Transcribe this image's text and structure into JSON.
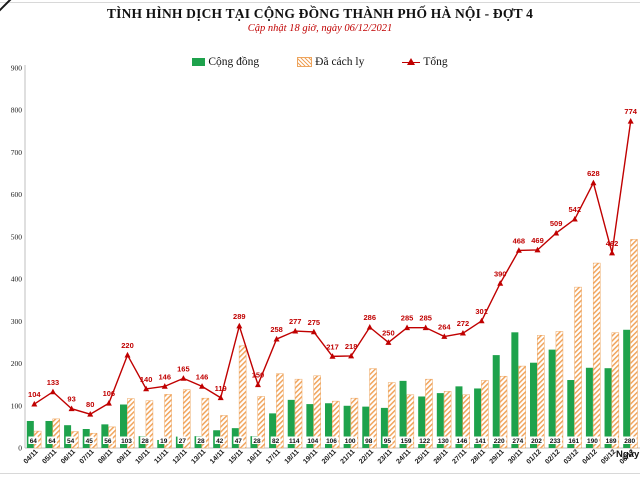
{
  "header": {
    "title": "TÌNH HÌNH DỊCH TẠI CỘNG ĐỒNG THÀNH PHỐ HÀ NỘI - ĐỢT 4",
    "subtitle": "Cập nhật 18 giờ, ngày 06/12/2021"
  },
  "legend": [
    {
      "label": "Cộng đồng",
      "swatch": "green-solid-square",
      "color": "#1ea24c"
    },
    {
      "label": "Đã cách ly",
      "swatch": "orange-hatch-square",
      "color": "#f0a45c"
    },
    {
      "label": "Tổng",
      "swatch": "red-line-marker",
      "color": "#c00000"
    }
  ],
  "chart_data": {
    "type": "bar",
    "subtype": "combo-bar-line",
    "title": "TÌNH HÌNH DỊCH TẠI CỘNG ĐỒNG THÀNH PHỐ HÀ NỘI - ĐỢT 4",
    "subtitle": "Cập nhật 18 giờ, ngày 06/12/2021",
    "xlabel": "Ngày",
    "ylabel": "",
    "ylim": [
      0,
      900
    ],
    "yticks": [
      0,
      100,
      200,
      300,
      400,
      500,
      600,
      700,
      800,
      900
    ],
    "grid": false,
    "legend_position": "top",
    "categories": [
      "04/11",
      "05/11",
      "06/11",
      "07/11",
      "08/11",
      "09/11",
      "10/11",
      "11/11",
      "12/11",
      "13/11",
      "14/11",
      "15/11",
      "16/11",
      "17/11",
      "18/11",
      "19/11",
      "20/11",
      "21/11",
      "22/11",
      "23/11",
      "24/11",
      "25/11",
      "26/11",
      "27/11",
      "28/11",
      "29/11",
      "30/11",
      "01/12",
      "02/12",
      "03/12",
      "04/12",
      "05/12",
      "06/12"
    ],
    "series": [
      {
        "name": "Cộng đồng",
        "type": "bar",
        "style": "solid",
        "color": "#1ea24c",
        "data_labels": "base",
        "values": [
          64,
          64,
          54,
          45,
          56,
          103,
          28,
          19,
          27,
          28,
          42,
          47,
          28,
          82,
          114,
          104,
          106,
          100,
          98,
          95,
          159,
          122,
          130,
          146,
          141,
          220,
          274,
          202,
          233,
          161,
          190,
          189,
          280
        ]
      },
      {
        "name": "Đã cách ly",
        "type": "bar",
        "style": "hatch-diagonal",
        "color": "#f0a45c",
        "data_labels": "none",
        "values": [
          40,
          69,
          39,
          35,
          50,
          117,
          112,
          127,
          138,
          118,
          77,
          242,
          122,
          176,
          163,
          171,
          111,
          118,
          188,
          155,
          126,
          163,
          134,
          126,
          160,
          170,
          194,
          267,
          276,
          381,
          438,
          273,
          494
        ]
      },
      {
        "name": "Tổng",
        "type": "line",
        "marker": "triangle-up",
        "color": "#c00000",
        "data_labels": "above",
        "values": [
          104,
          133,
          93,
          80,
          106,
          220,
          140,
          146,
          165,
          146,
          119,
          289,
          150,
          258,
          277,
          275,
          217,
          218,
          286,
          250,
          285,
          285,
          264,
          272,
          301,
          390,
          468,
          469,
          509,
          542,
          628,
          462,
          774
        ]
      }
    ]
  }
}
